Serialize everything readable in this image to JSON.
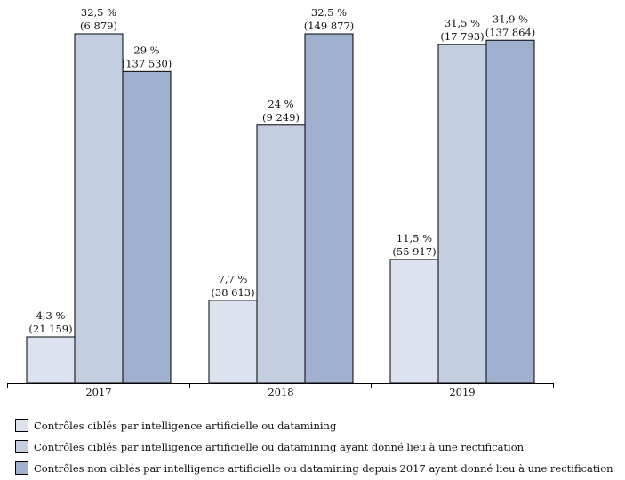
{
  "chart_data": {
    "type": "bar",
    "title": "",
    "xlabel": "",
    "ylabel": "",
    "ylim": [
      0,
      33
    ],
    "grid": false,
    "legend_position": "bottom",
    "categories": [
      "2017",
      "2018",
      "2019"
    ],
    "series": [
      {
        "name": "Contrôles ciblés par intelligence artificielle ou datamining",
        "color": "#dce3ee",
        "values": [
          4.3,
          7.7,
          11.5
        ],
        "labels": [
          "4,3 %",
          "7,7 %",
          "11,5 %"
        ],
        "counts": [
          "(21 159)",
          "(38 613)",
          "(55 917)"
        ]
      },
      {
        "name": "Contrôles ciblés par intelligence artificielle ou datamining ayant donné lieu à une rectification",
        "color": "#c3cee0",
        "values": [
          32.5,
          24,
          31.5
        ],
        "labels": [
          "32,5 %",
          "24 %",
          "31,5 %"
        ],
        "counts": [
          "(6 879)",
          "(9 249)",
          "(17 793)"
        ]
      },
      {
        "name": "Contrôles non ciblés par intelligence artificielle ou datamining depuis 2017 ayant donné lieu à une rectification",
        "color": "#9fb1cf",
        "values": [
          29,
          32.5,
          31.9
        ],
        "labels": [
          "29 %",
          "32,5 %",
          "31,9 %"
        ],
        "counts": [
          "(137 530)",
          "(149 877)",
          "(137 864)"
        ]
      }
    ]
  }
}
